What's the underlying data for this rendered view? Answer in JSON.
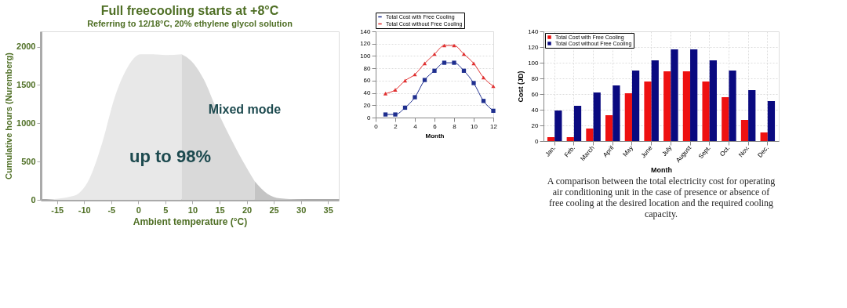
{
  "chart_data": [
    {
      "type": "area",
      "title": "Full freecooling starts at +8°C",
      "subtitle": "Referring to 12/18°C, 20% ethylene glycol solution",
      "xlabel": "Ambient temperature (°C)",
      "ylabel": "Cumulative hours (Nuremberg)",
      "xlim": [
        -18,
        37
      ],
      "xticks": [
        -15,
        -10,
        -5,
        0,
        5,
        10,
        15,
        20,
        25,
        30,
        35
      ],
      "ylim": [
        0,
        2200
      ],
      "yticks": [
        0,
        500,
        1000,
        1500,
        2000
      ],
      "grid": false,
      "series": [
        {
          "color": "#e8e8e8",
          "x": [
            -17,
            -12,
            -9,
            -6.6,
            -4.3,
            -1.9,
            0.4,
            2.8,
            5.1,
            8
          ],
          "values": [
            0,
            50,
            280,
            760,
            1350,
            1740,
            1900,
            1900,
            1890,
            1900
          ]
        },
        {
          "color": "#d9d9d9",
          "x": [
            8,
            9.8,
            12.1,
            14.4,
            16.8,
            19.1,
            21.5
          ],
          "values": [
            1900,
            1810,
            1570,
            1190,
            840,
            530,
            240
          ]
        },
        {
          "color": "#c4c4c4",
          "x": [
            21.5,
            23.8,
            26.1,
            31
          ],
          "values": [
            240,
            80,
            20,
            0
          ]
        }
      ],
      "annotations": [
        "Mixed mode",
        "up to 98%"
      ]
    },
    {
      "type": "line",
      "xlabel": "Month",
      "xlim": [
        0,
        12
      ],
      "xticks": [
        0,
        2,
        4,
        6,
        8,
        10,
        12
      ],
      "ylim": [
        0,
        140
      ],
      "yticks": [
        0,
        20,
        40,
        60,
        80,
        100,
        120,
        140
      ],
      "grid": "y",
      "legend": "top",
      "x": [
        1,
        2,
        3,
        4,
        5,
        6,
        7,
        8,
        9,
        10,
        11,
        12
      ],
      "series": [
        {
          "name": "Total Cost with Free Cooling",
          "color": "#1f2f8f",
          "marker": "square",
          "values": [
            5,
            5,
            16,
            33,
            61,
            76,
            89,
            89,
            76,
            56,
            27,
            11
          ]
        },
        {
          "name": "Total Cost without Free Cooling",
          "color": "#e03030",
          "marker": "triangle",
          "values": [
            39,
            45,
            60,
            70,
            88,
            103,
            117,
            117,
            103,
            88,
            65,
            51
          ]
        }
      ]
    },
    {
      "type": "bar",
      "xlabel": "Month",
      "ylabel": "Cost (JD)",
      "ylim": [
        0,
        140
      ],
      "yticks": [
        0,
        20,
        40,
        60,
        80,
        100,
        120,
        140
      ],
      "grid": true,
      "legend": "top left",
      "categories": [
        "Jan.",
        "Feb.",
        "March",
        "April",
        "May",
        "June",
        "July",
        "August",
        "Sept.",
        "Oct.",
        "Nov.",
        "Dec."
      ],
      "series": [
        {
          "name": "Total Cost with Free Cooling",
          "color": "#ee1111",
          "values": [
            5,
            5,
            16,
            33,
            61,
            76,
            89,
            89,
            76,
            56,
            27,
            11
          ]
        },
        {
          "name": "Total Cost without Free Cooling",
          "color": "#0a0a80",
          "values": [
            39,
            45,
            62,
            71,
            90,
            103,
            117,
            117,
            103,
            90,
            65,
            51
          ]
        }
      ],
      "annotations": [
        "A comparison between the total electricity cost for operating air conditioning unit in the case of presence or absence of free cooling at the desired location and the required cooling capacity."
      ]
    }
  ]
}
